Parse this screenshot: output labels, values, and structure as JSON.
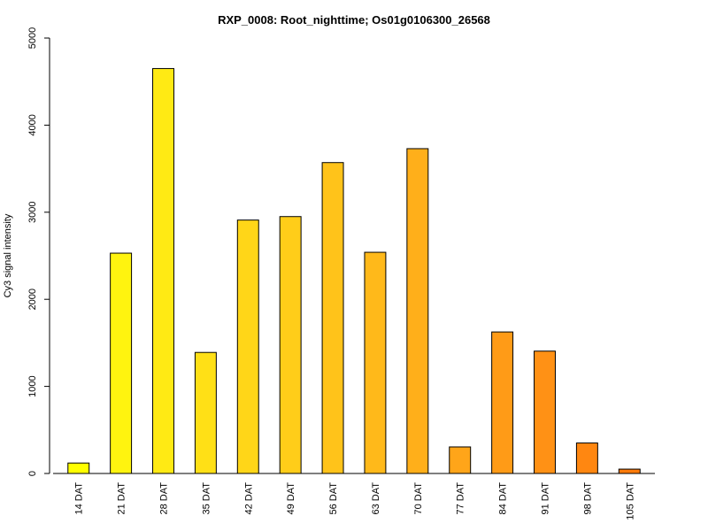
{
  "chart_data": {
    "type": "bar",
    "title": "RXP_0008: Root_nighttime; Os01g0106300_26568",
    "xlabel": "",
    "ylabel": "Cy3 signal intensity",
    "ylim": [
      0,
      5000
    ],
    "yticks": [
      0,
      1000,
      2000,
      3000,
      4000,
      5000
    ],
    "grid": false,
    "legend": "none",
    "categories": [
      "14 DAT",
      "21 DAT",
      "28 DAT",
      "35 DAT",
      "42 DAT",
      "49 DAT",
      "56 DAT",
      "63 DAT",
      "70 DAT",
      "77 DAT",
      "84 DAT",
      "91 DAT",
      "98 DAT",
      "105 DAT"
    ],
    "values": [
      120,
      2530,
      4650,
      1390,
      2910,
      2950,
      3570,
      2540,
      3730,
      305,
      1625,
      1405,
      350,
      50
    ],
    "colors": [
      "#ffff00",
      "#fff40f",
      "#ffea14",
      "#ffe016",
      "#ffd618",
      "#ffcd19",
      "#ffc31a",
      "#ffb91a",
      "#ffaf1a",
      "#ffa519",
      "#ff9b17",
      "#ff9115",
      "#ff8711",
      "#ff7b0a"
    ]
  }
}
